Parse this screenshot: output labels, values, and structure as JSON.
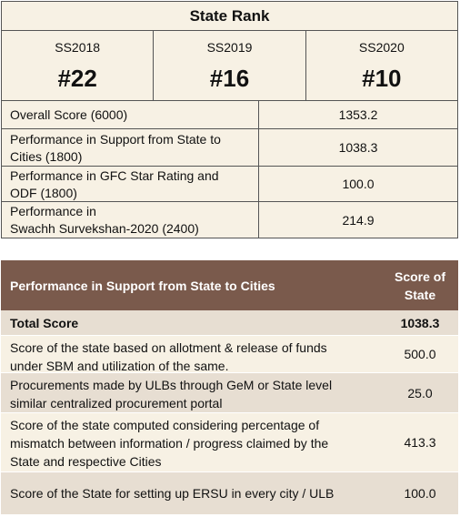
{
  "state_rank": {
    "title": "State Rank",
    "years": [
      {
        "label": "SS2018",
        "rank": "#22"
      },
      {
        "label": "SS2019",
        "rank": "#16"
      },
      {
        "label": "SS2020",
        "rank": "#10"
      }
    ],
    "metrics": [
      {
        "label": "Overall Score (6000)",
        "value": "1353.2"
      },
      {
        "label_line1": "Performance in Support from State to",
        "label_line2": "Cities (1800)",
        "value": "1038.3"
      },
      {
        "label_line1": "Performance in GFC Star Rating and",
        "label_line2": "ODF (1800)",
        "value": "100.0"
      },
      {
        "label_line1": "Performance in",
        "label_line2": "Swachh Survekshan-2020 (2400)",
        "value": "214.9"
      }
    ]
  },
  "performance": {
    "header_label": "Performance in Support from State to Cities",
    "header_score_line1": "Score of",
    "header_score_line2": "State",
    "total_label": "Total Score",
    "total_value": "1038.3",
    "rows": [
      {
        "line1": "Score of the state based on allotment & release of funds",
        "line2": "under SBM and utilization of the same.",
        "value": "500.0"
      },
      {
        "line1": "Procurements made by ULBs through GeM or State level",
        "line2": "similar centralized procurement portal",
        "value": "25.0"
      },
      {
        "line1": "Score of the state computed considering percentage of",
        "line2": "mismatch between information / progress claimed by the",
        "line3": "State and respective Cities",
        "value": "413.3"
      },
      {
        "line1": "Score of the State for setting up ERSU in every city / ULB",
        "value": "100.0"
      }
    ]
  }
}
